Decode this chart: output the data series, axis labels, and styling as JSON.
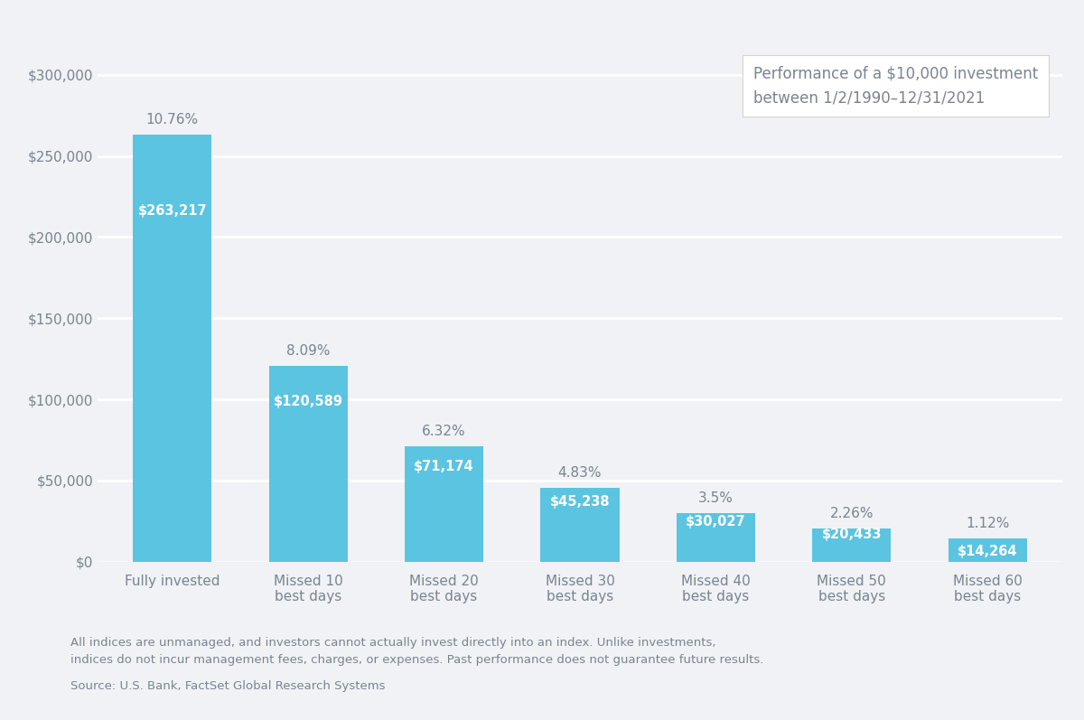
{
  "categories": [
    "Fully invested",
    "Missed 10\nbest days",
    "Missed 20\nbest days",
    "Missed 30\nbest days",
    "Missed 40\nbest days",
    "Missed 50\nbest days",
    "Missed 60\nbest days"
  ],
  "values": [
    263217,
    120589,
    71174,
    45238,
    30027,
    20433,
    14264
  ],
  "percentages": [
    "10.76%",
    "8.09%",
    "6.32%",
    "4.83%",
    "3.5%",
    "2.26%",
    "1.12%"
  ],
  "dollar_labels": [
    "$263,217",
    "$120,589",
    "$71,174",
    "$45,238",
    "$30,027",
    "$20,433",
    "$14,264"
  ],
  "bar_color": "#5bc4e0",
  "background_color": "#f0f2f5",
  "text_color": "#7a8490",
  "annotation_box_text": "Performance of a $10,000 investment\nbetween 1/2/1990–12/31/2021",
  "disclaimer_line1": "All indices are unmanaged, and investors cannot actually invest directly into an index. Unlike investments,",
  "disclaimer_line2": "indices do not incur management fees, charges, or expenses. Past performance does not guarantee future results.",
  "source_text": "Source: U.S. Bank, FactSet Global Research Systems",
  "ylim": [
    0,
    315000
  ],
  "yticks": [
    0,
    50000,
    100000,
    150000,
    200000,
    250000,
    300000
  ]
}
